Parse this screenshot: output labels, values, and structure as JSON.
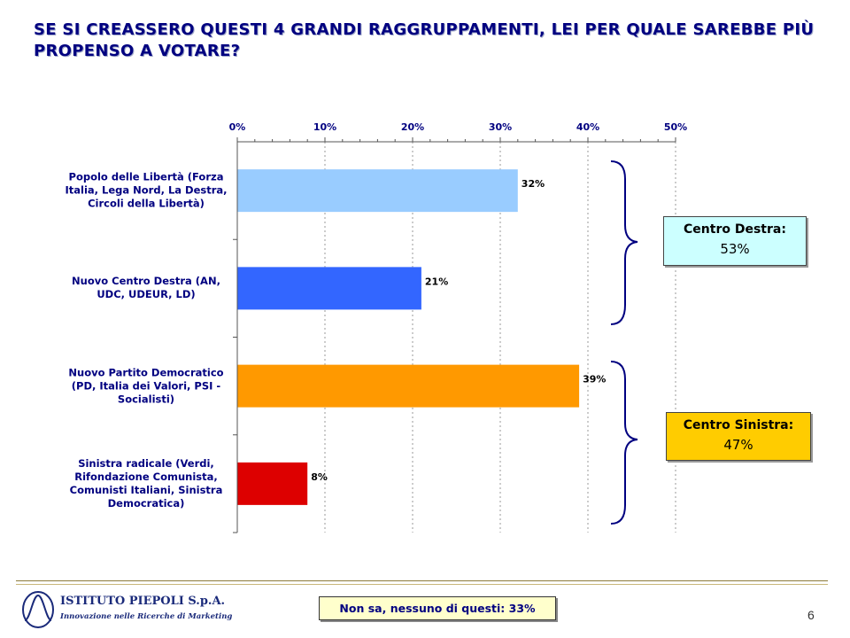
{
  "title": "SE SI CREASSERO QUESTI 4 GRANDI RAGGRUPPAMENTI, LEI PER QUALE SAREBBE PIÙ PROPENSO A VOTARE?",
  "chart_data": {
    "type": "bar",
    "orientation": "horizontal",
    "categories": [
      "Popolo delle Libertà (Forza Italia, Lega Nord, La Destra, Circoli della Libertà)",
      "Nuovo Centro Destra (AN, UDC, UDEUR, LD)",
      "Nuovo Partito Democratico (PD, Italia dei Valori, PSI - Socialisti)",
      "Sinistra radicale (Verdi, Rifondazione Comunista, Comunisti Italiani, Sinistra Democratica)"
    ],
    "values": [
      32,
      21,
      39,
      8
    ],
    "data_labels": [
      "32%",
      "21%",
      "39%",
      "8%"
    ],
    "bar_colors": [
      "#99ccff",
      "#3366ff",
      "#ff9900",
      "#dd0000"
    ],
    "xlim": [
      0,
      50
    ],
    "x_ticks": [
      0,
      10,
      20,
      30,
      40,
      50
    ],
    "x_tick_labels": [
      "0%",
      "10%",
      "20%",
      "30%",
      "40%",
      "50%"
    ],
    "axis_position": "top",
    "grid": "vertical dashed",
    "groups": [
      {
        "label": "Centro Destra:",
        "value": "53%",
        "categories_index": [
          0,
          1
        ],
        "color": "#ccffff"
      },
      {
        "label": "Centro Sinistra:",
        "value": "47%",
        "categories_index": [
          2,
          3
        ],
        "color": "#ffcc00"
      }
    ]
  },
  "note": "Non sa, nessuno di questi: 33%",
  "footer": {
    "logo_name": "ISTITUTO PIEPOLI S.p.A.",
    "logo_tagline": "Innovazione nelle Ricerche di Marketing",
    "page_number": "6"
  },
  "colors": {
    "title": "#000080",
    "brace": "#000080"
  }
}
